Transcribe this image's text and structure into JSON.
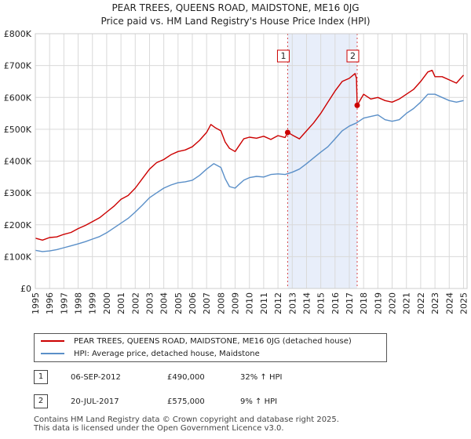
{
  "chart_data": {
    "type": "line",
    "title": "PEAR TREES, QUEENS ROAD, MAIDSTONE, ME16 0JG",
    "subtitle": "Price paid vs. HM Land Registry's House Price Index (HPI)",
    "xlim": [
      1995,
      2025.25
    ],
    "ylim": [
      0,
      800000
    ],
    "y_ticks": [
      0,
      100000,
      200000,
      300000,
      400000,
      500000,
      600000,
      700000,
      800000
    ],
    "y_tick_labels": [
      "£0",
      "£100K",
      "£200K",
      "£300K",
      "£400K",
      "£500K",
      "£600K",
      "£700K",
      "£800K"
    ],
    "x_ticks": [
      "1995",
      "1996",
      "1997",
      "1998",
      "1999",
      "2000",
      "2001",
      "2002",
      "2003",
      "2004",
      "2005",
      "2006",
      "2007",
      "2008",
      "2009",
      "2010",
      "2011",
      "2012",
      "2013",
      "2014",
      "2015",
      "2016",
      "2017",
      "2018",
      "2019",
      "2020",
      "2021",
      "2022",
      "2023",
      "2024",
      "2025"
    ],
    "series": [
      {
        "name": "PEAR TREES, QUEENS ROAD, MAIDSTONE, ME16 0JG (detached house)",
        "color": "#cc0000",
        "x": [
          1995.0,
          1995.5,
          1996.0,
          1996.5,
          1997.0,
          1997.5,
          1998.0,
          1998.5,
          1999.0,
          1999.5,
          2000.0,
          2000.5,
          2001.0,
          2001.5,
          2002.0,
          2002.5,
          2003.0,
          2003.5,
          2004.0,
          2004.5,
          2005.0,
          2005.5,
          2006.0,
          2006.5,
          2007.0,
          2007.3,
          2007.6,
          2008.0,
          2008.3,
          2008.6,
          2009.0,
          2009.3,
          2009.6,
          2010.0,
          2010.5,
          2011.0,
          2011.5,
          2012.0,
          2012.5,
          2012.68,
          2013.0,
          2013.5,
          2014.0,
          2014.5,
          2015.0,
          2015.5,
          2016.0,
          2016.5,
          2017.0,
          2017.4,
          2017.5,
          2017.55,
          2018.0,
          2018.5,
          2019.0,
          2019.5,
          2020.0,
          2020.5,
          2021.0,
          2021.5,
          2022.0,
          2022.5,
          2022.8,
          2023.0,
          2023.5,
          2024.0,
          2024.5,
          2025.0
        ],
        "values": [
          158000,
          152000,
          160000,
          162000,
          170000,
          176000,
          188000,
          198000,
          210000,
          222000,
          240000,
          258000,
          280000,
          292000,
          315000,
          345000,
          375000,
          395000,
          405000,
          420000,
          430000,
          435000,
          445000,
          465000,
          490000,
          515000,
          505000,
          495000,
          460000,
          440000,
          430000,
          450000,
          470000,
          475000,
          472000,
          478000,
          468000,
          480000,
          474000,
          490000,
          482000,
          470000,
          495000,
          520000,
          550000,
          585000,
          620000,
          650000,
          660000,
          675000,
          660000,
          575000,
          610000,
          595000,
          600000,
          590000,
          585000,
          595000,
          610000,
          625000,
          650000,
          680000,
          685000,
          665000,
          665000,
          655000,
          645000,
          670000
        ]
      },
      {
        "name": "HPI: Average price, detached house, Maidstone",
        "color": "#5a8fc8",
        "x": [
          1995.0,
          1995.5,
          1996.0,
          1996.5,
          1997.0,
          1997.5,
          1998.0,
          1998.5,
          1999.0,
          1999.5,
          2000.0,
          2000.5,
          2001.0,
          2001.5,
          2002.0,
          2002.5,
          2003.0,
          2003.5,
          2004.0,
          2004.5,
          2005.0,
          2005.5,
          2006.0,
          2006.5,
          2007.0,
          2007.5,
          2008.0,
          2008.3,
          2008.6,
          2009.0,
          2009.3,
          2009.6,
          2010.0,
          2010.5,
          2011.0,
          2011.5,
          2012.0,
          2012.5,
          2013.0,
          2013.5,
          2014.0,
          2014.5,
          2015.0,
          2015.5,
          2016.0,
          2016.5,
          2017.0,
          2017.5,
          2018.0,
          2018.5,
          2019.0,
          2019.5,
          2020.0,
          2020.5,
          2021.0,
          2021.5,
          2022.0,
          2022.5,
          2023.0,
          2023.5,
          2024.0,
          2024.5,
          2025.0
        ],
        "values": [
          120000,
          116000,
          118000,
          122000,
          128000,
          134000,
          140000,
          147000,
          155000,
          163000,
          175000,
          190000,
          205000,
          220000,
          240000,
          262000,
          285000,
          300000,
          315000,
          325000,
          332000,
          335000,
          340000,
          355000,
          375000,
          392000,
          380000,
          345000,
          320000,
          315000,
          328000,
          340000,
          348000,
          352000,
          350000,
          358000,
          360000,
          358000,
          365000,
          375000,
          392000,
          410000,
          428000,
          445000,
          470000,
          495000,
          510000,
          520000,
          535000,
          540000,
          545000,
          530000,
          525000,
          530000,
          550000,
          565000,
          585000,
          610000,
          610000,
          600000,
          590000,
          585000,
          590000
        ]
      }
    ],
    "sales": [
      {
        "id": "1",
        "x": 2012.68,
        "value": 490000
      },
      {
        "id": "2",
        "x": 2017.55,
        "value": 575000
      }
    ],
    "highlight_range": [
      2012.68,
      2017.55
    ]
  },
  "legend": {
    "red_label": "PEAR TREES, QUEENS ROAD, MAIDSTONE, ME16 0JG (detached house)",
    "blue_label": "HPI: Average price, detached house, Maidstone"
  },
  "sales_table": [
    {
      "num": "1",
      "date": "06-SEP-2012",
      "price": "£490,000",
      "hpi": "32% ↑ HPI"
    },
    {
      "num": "2",
      "date": "20-JUL-2017",
      "price": "£575,000",
      "hpi": "9% ↑ HPI"
    }
  ],
  "footer": {
    "line1": "Contains HM Land Registry data © Crown copyright and database right 2025.",
    "line2": "This data is licensed under the Open Government Licence v3.0."
  }
}
